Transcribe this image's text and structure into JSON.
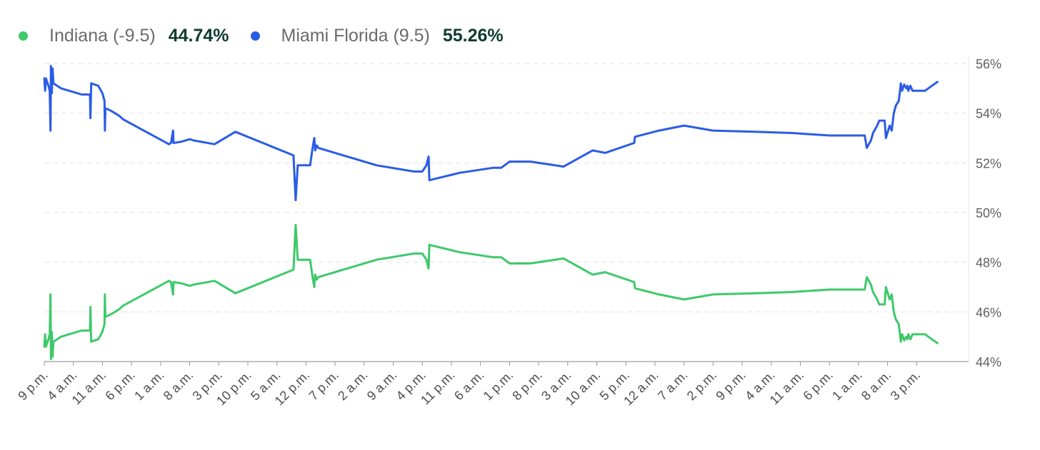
{
  "legend": {
    "series": [
      {
        "label": "Indiana (-9.5)",
        "value": "44.74%",
        "color": "#3ec96a"
      },
      {
        "label": "Miami Florida (9.5)",
        "value": "55.26%",
        "color": "#2b5ce6"
      }
    ]
  },
  "chart_data": {
    "type": "line",
    "title": "",
    "xlabel": "",
    "ylabel": "",
    "ylim": [
      44,
      56
    ],
    "y_ticks": [
      44,
      46,
      48,
      50,
      52,
      54,
      56
    ],
    "y_tick_labels": [
      "44%",
      "46%",
      "48%",
      "50%",
      "52%",
      "54%",
      "56%"
    ],
    "x_tick_labels": [
      "9 p.m.",
      "4 a.m.",
      "11 a.m.",
      "6 p.m.",
      "1 a.m.",
      "8 a.m.",
      "3 p.m.",
      "10 p.m.",
      "5 a.m.",
      "12 p.m.",
      "7 p.m.",
      "2 a.m.",
      "9 a.m.",
      "4 p.m.",
      "11 p.m.",
      "6 a.m.",
      "1 p.m.",
      "8 p.m.",
      "3 a.m.",
      "10 a.m.",
      "5 p.m.",
      "12 a.m.",
      "7 a.m.",
      "2 p.m.",
      "9 p.m.",
      "4 a.m.",
      "11 a.m.",
      "6 p.m.",
      "1 a.m.",
      "8 a.m.",
      "3 p.m."
    ],
    "x_unit": "hours since first tick (9 p.m.)",
    "x_range": [
      0,
      222.5
    ],
    "grid": true,
    "series": [
      {
        "name": "Miami Florida (9.5)",
        "color": "#2b5ce6",
        "points": [
          [
            0,
            55.4
          ],
          [
            0.2,
            54.9
          ],
          [
            0.4,
            55.4
          ],
          [
            1,
            55.1
          ],
          [
            1.3,
            54.9
          ],
          [
            1.5,
            53.3
          ],
          [
            1.6,
            55.9
          ],
          [
            1.8,
            54.8
          ],
          [
            2,
            55.8
          ],
          [
            2.2,
            55.2
          ],
          [
            4,
            55.0
          ],
          [
            6,
            54.9
          ],
          [
            9,
            54.75
          ],
          [
            11,
            54.75
          ],
          [
            11.1,
            53.8
          ],
          [
            11.3,
            55.2
          ],
          [
            13,
            55.1
          ],
          [
            14,
            54.8
          ],
          [
            14.5,
            54.5
          ],
          [
            14.6,
            53.3
          ],
          [
            14.7,
            54.2
          ],
          [
            16,
            54.1
          ],
          [
            18,
            53.9
          ],
          [
            19,
            53.75
          ],
          [
            30,
            52.75
          ],
          [
            30.5,
            52.8
          ],
          [
            31,
            53.3
          ],
          [
            31.1,
            52.8
          ],
          [
            33,
            52.85
          ],
          [
            35,
            52.95
          ],
          [
            36,
            52.9
          ],
          [
            41,
            52.75
          ],
          [
            46,
            53.25
          ],
          [
            60,
            52.3
          ],
          [
            60.5,
            50.5
          ],
          [
            61,
            51.9
          ],
          [
            64,
            51.9
          ],
          [
            64.5,
            52.5
          ],
          [
            65,
            53.0
          ],
          [
            65.2,
            52.5
          ],
          [
            65.6,
            52.7
          ],
          [
            66,
            52.6
          ],
          [
            72,
            52.3
          ],
          [
            80,
            51.9
          ],
          [
            89,
            51.65
          ],
          [
            91,
            51.65
          ],
          [
            92,
            51.9
          ],
          [
            92.5,
            52.25
          ],
          [
            92.7,
            51.3
          ],
          [
            100,
            51.6
          ],
          [
            108,
            51.8
          ],
          [
            110,
            51.8
          ],
          [
            112,
            52.05
          ],
          [
            117,
            52.05
          ],
          [
            125,
            51.85
          ],
          [
            132,
            52.5
          ],
          [
            135,
            52.4
          ],
          [
            142,
            52.8
          ],
          [
            142.2,
            53.05
          ],
          [
            148,
            53.3
          ],
          [
            154,
            53.5
          ],
          [
            161,
            53.3
          ],
          [
            171,
            53.25
          ],
          [
            180,
            53.2
          ],
          [
            189,
            53.1
          ],
          [
            196,
            53.1
          ],
          [
            197.5,
            53.1
          ],
          [
            198,
            52.6
          ],
          [
            199,
            52.9
          ],
          [
            199.5,
            53.2
          ],
          [
            200.5,
            53.5
          ],
          [
            201,
            53.7
          ],
          [
            202.3,
            53.7
          ],
          [
            202.6,
            53.0
          ],
          [
            203.5,
            53.5
          ],
          [
            204,
            53.3
          ],
          [
            204.5,
            54.0
          ],
          [
            205,
            54.3
          ],
          [
            205.7,
            54.5
          ],
          [
            206,
            54.9
          ],
          [
            206.2,
            55.2
          ],
          [
            206.5,
            54.9
          ],
          [
            207,
            55.15
          ],
          [
            207.5,
            55.0
          ],
          [
            207.8,
            55.1
          ],
          [
            208,
            54.9
          ],
          [
            208.5,
            55.1
          ],
          [
            209,
            54.9
          ],
          [
            212,
            54.9
          ],
          [
            215,
            55.26
          ]
        ]
      },
      {
        "name": "Indiana (-9.5)",
        "color": "#3ec96a",
        "points": [
          [
            0,
            44.6
          ],
          [
            0.2,
            45.1
          ],
          [
            0.4,
            44.6
          ],
          [
            1,
            44.9
          ],
          [
            1.3,
            45.1
          ],
          [
            1.5,
            46.7
          ],
          [
            1.6,
            44.1
          ],
          [
            1.8,
            45.2
          ],
          [
            2,
            44.2
          ],
          [
            2.2,
            44.8
          ],
          [
            4,
            45.0
          ],
          [
            6,
            45.1
          ],
          [
            9,
            45.25
          ],
          [
            11,
            45.25
          ],
          [
            11.1,
            46.2
          ],
          [
            11.3,
            44.8
          ],
          [
            13,
            44.9
          ],
          [
            14,
            45.2
          ],
          [
            14.5,
            45.5
          ],
          [
            14.6,
            46.7
          ],
          [
            14.7,
            45.8
          ],
          [
            16,
            45.9
          ],
          [
            18,
            46.1
          ],
          [
            19,
            46.25
          ],
          [
            30,
            47.25
          ],
          [
            30.5,
            47.2
          ],
          [
            31,
            46.7
          ],
          [
            31.1,
            47.2
          ],
          [
            33,
            47.15
          ],
          [
            35,
            47.05
          ],
          [
            36,
            47.1
          ],
          [
            41,
            47.25
          ],
          [
            46,
            46.75
          ],
          [
            60,
            47.7
          ],
          [
            60.5,
            49.5
          ],
          [
            61,
            48.1
          ],
          [
            64,
            48.1
          ],
          [
            64.5,
            47.5
          ],
          [
            65,
            47.0
          ],
          [
            65.2,
            47.5
          ],
          [
            65.6,
            47.3
          ],
          [
            66,
            47.4
          ],
          [
            72,
            47.7
          ],
          [
            80,
            48.1
          ],
          [
            89,
            48.35
          ],
          [
            91,
            48.35
          ],
          [
            92,
            48.1
          ],
          [
            92.5,
            47.75
          ],
          [
            92.7,
            48.7
          ],
          [
            100,
            48.4
          ],
          [
            108,
            48.2
          ],
          [
            110,
            48.2
          ],
          [
            112,
            47.95
          ],
          [
            117,
            47.95
          ],
          [
            125,
            48.15
          ],
          [
            132,
            47.5
          ],
          [
            135,
            47.6
          ],
          [
            142,
            47.2
          ],
          [
            142.2,
            46.95
          ],
          [
            148,
            46.7
          ],
          [
            154,
            46.5
          ],
          [
            161,
            46.7
          ],
          [
            171,
            46.75
          ],
          [
            180,
            46.8
          ],
          [
            189,
            46.9
          ],
          [
            196,
            46.9
          ],
          [
            197.5,
            46.9
          ],
          [
            198,
            47.4
          ],
          [
            199,
            47.1
          ],
          [
            199.5,
            46.8
          ],
          [
            200.5,
            46.5
          ],
          [
            201,
            46.3
          ],
          [
            202.3,
            46.3
          ],
          [
            202.6,
            47.0
          ],
          [
            203.5,
            46.5
          ],
          [
            204,
            46.7
          ],
          [
            204.5,
            46.0
          ],
          [
            205,
            45.7
          ],
          [
            205.7,
            45.5
          ],
          [
            206,
            45.1
          ],
          [
            206.2,
            44.8
          ],
          [
            206.5,
            45.1
          ],
          [
            207,
            44.85
          ],
          [
            207.5,
            45.0
          ],
          [
            207.8,
            44.9
          ],
          [
            208,
            45.1
          ],
          [
            208.5,
            44.9
          ],
          [
            209,
            45.1
          ],
          [
            212,
            45.1
          ],
          [
            215,
            44.74
          ]
        ]
      }
    ]
  }
}
